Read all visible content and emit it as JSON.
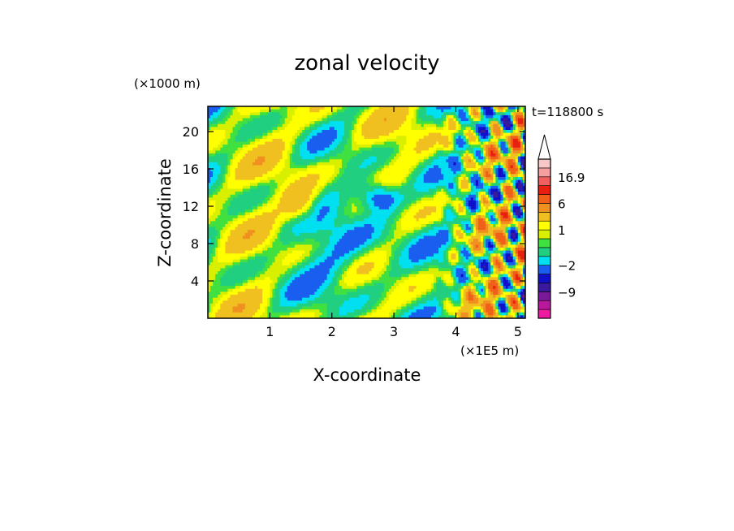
{
  "chart_data": {
    "type": "heatmap",
    "title": "zonal velocity",
    "xlabel": "X-coordinate",
    "ylabel": "Z-coordinate",
    "x_unit": "(×1E5 m)",
    "y_unit": "(×1000 m)",
    "time_label": "t=118800 s",
    "x_ticks": [
      "1",
      "2",
      "3",
      "4",
      "5"
    ],
    "x_tick_values": [
      1,
      2,
      3,
      4,
      5
    ],
    "y_ticks": [
      "4",
      "8",
      "12",
      "16",
      "20"
    ],
    "y_tick_values": [
      4,
      8,
      12,
      16,
      20
    ],
    "xlim": [
      0,
      5.12
    ],
    "ylim": [
      0,
      22.7
    ],
    "colorbar": {
      "labels": [
        "16.9",
        "6",
        "1",
        "−2",
        "−9"
      ],
      "label_values": [
        16.9,
        6,
        1,
        -2,
        -9
      ],
      "levels": [
        -14,
        -11,
        -9,
        -6,
        -4,
        -2,
        -1,
        0,
        0.5,
        1,
        2,
        4,
        6,
        9,
        12,
        16.9
      ],
      "colors": [
        "#ee1aa0",
        "#b8189a",
        "#7a1a9a",
        "#3a1a9c",
        "#1010c8",
        "#1a5ef0",
        "#00e0f0",
        "#20d080",
        "#40e040",
        "#d8f000",
        "#ffff00",
        "#f0c020",
        "#f09020",
        "#f06018",
        "#e82010",
        "#f06060",
        "#f4a0a0",
        "#f8c8c8"
      ],
      "extend": "max"
    },
    "description_field": "contour-filled zonal wind component over x-z plane"
  }
}
